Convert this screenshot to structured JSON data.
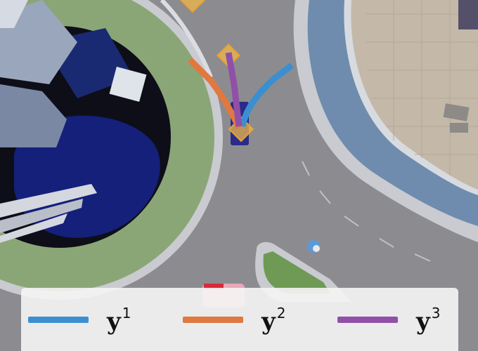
{
  "legend": {
    "items": [
      {
        "base": "y",
        "superscript": "1",
        "color": "#3b8fd0",
        "icon": "line-swatch-icon"
      },
      {
        "base": "y",
        "superscript": "2",
        "color": "#e07840",
        "icon": "line-swatch-icon"
      },
      {
        "base": "y",
        "superscript": "3",
        "color": "#9050a8",
        "icon": "line-swatch-icon"
      }
    ]
  },
  "trajectories": [
    {
      "name": "y1",
      "color": "#3b8fd0"
    },
    {
      "name": "y2",
      "color": "#e07840"
    },
    {
      "name": "y3",
      "color": "#9050a8"
    }
  ],
  "markers": {
    "waypoint_color": "#f0b84a",
    "ego_vehicle_color": "#2a2a8a"
  }
}
